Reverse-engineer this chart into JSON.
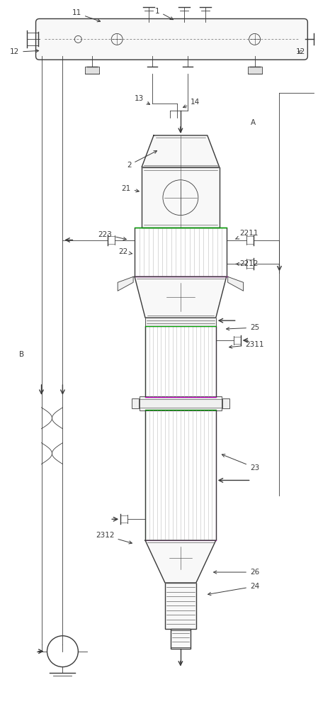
{
  "fig_width": 4.49,
  "fig_height": 10.0,
  "dpi": 100,
  "bg_color": "#ffffff",
  "line_color": "#3a3a3a",
  "light_gray": "#bbbbbb",
  "fill_light": "#f0f0f0",
  "fill_lighter": "#f8f8f8",
  "green_line": "#00aa00",
  "purple_line": "#cc00cc"
}
